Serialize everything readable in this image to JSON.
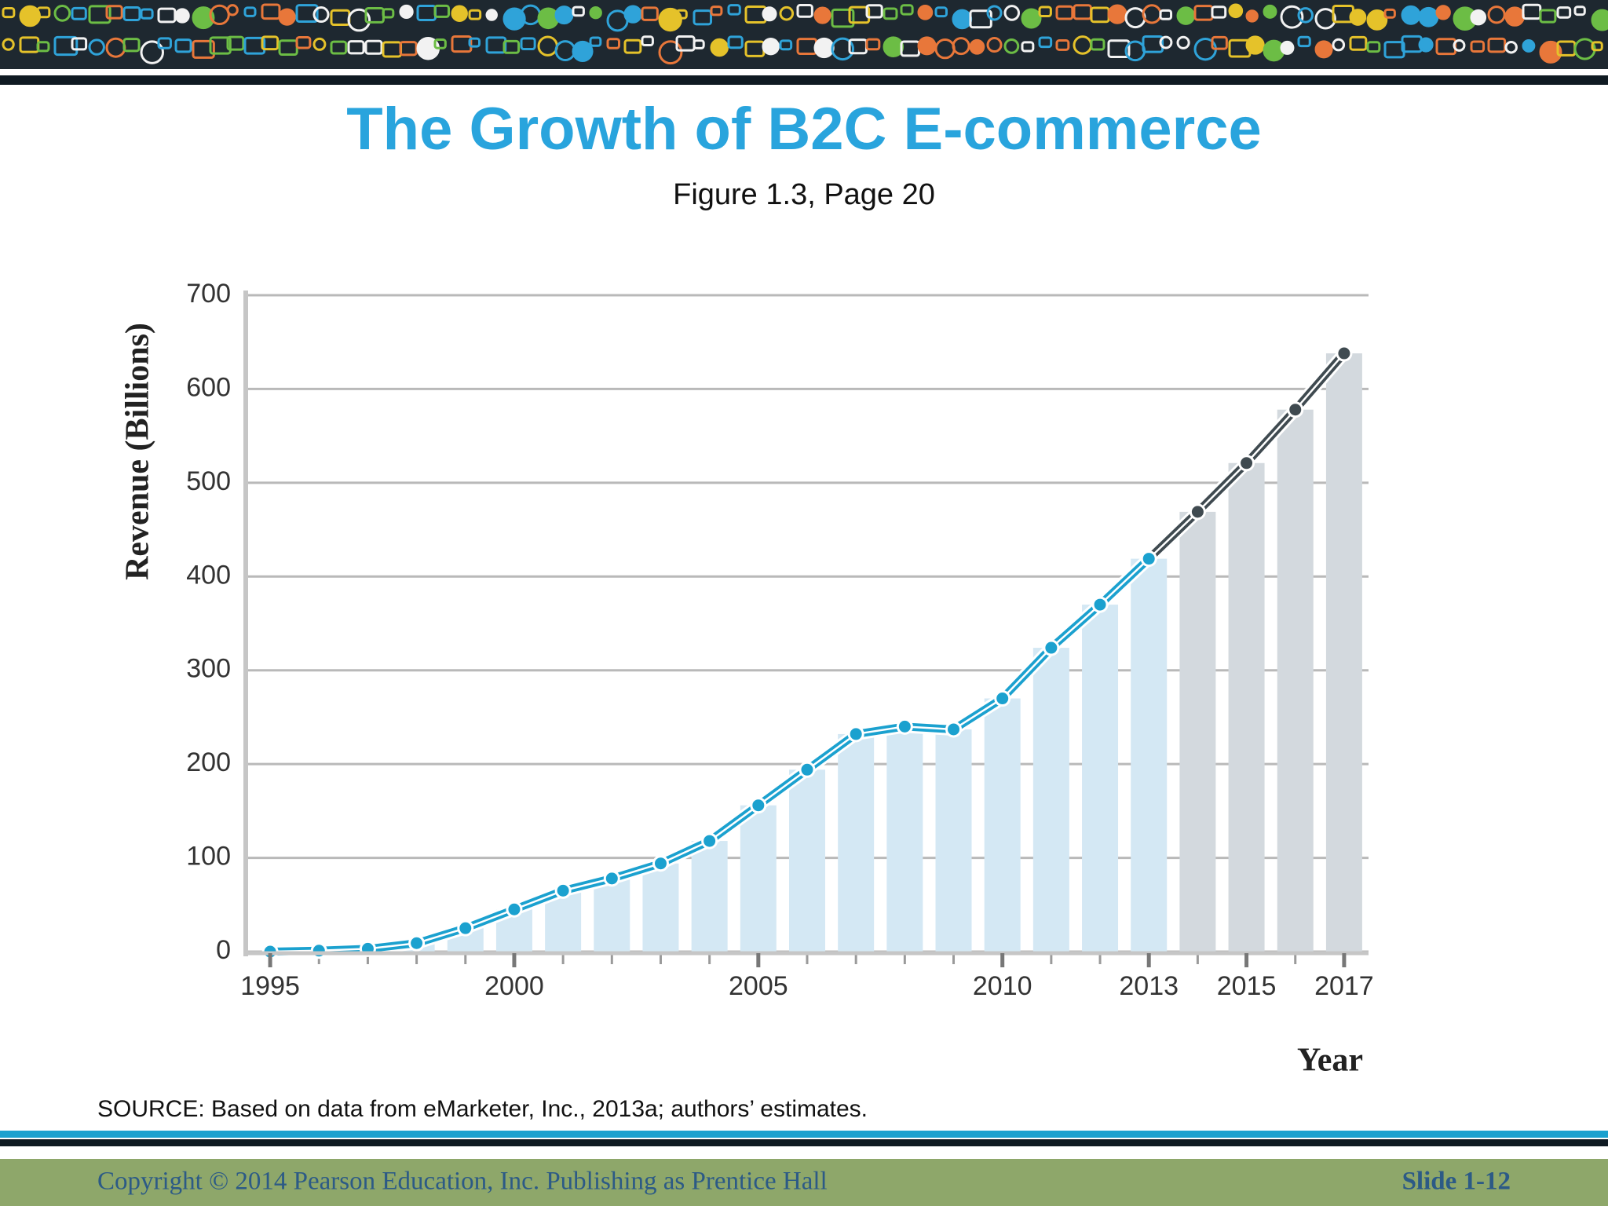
{
  "header": {
    "title": "The Growth of B2C E-commerce",
    "subtitle": "Figure 1.3, Page 20"
  },
  "chart_data": {
    "type": "combo",
    "x_label": "Year",
    "y_label": "Revenue (Billions)",
    "x": [
      1995,
      1996,
      1997,
      1998,
      1999,
      2000,
      2001,
      2002,
      2003,
      2004,
      2005,
      2006,
      2007,
      2008,
      2009,
      2010,
      2011,
      2012,
      2013,
      2014,
      2015,
      2016,
      2017
    ],
    "values": [
      0,
      1,
      3,
      9,
      25,
      45,
      65,
      78,
      94,
      118,
      156,
      194,
      232,
      240,
      237,
      270,
      324,
      370,
      419,
      469,
      521,
      578,
      638
    ],
    "bar_colors": [
      "#d4e8f4",
      "#d4e8f4",
      "#d4e8f4",
      "#d4e8f4",
      "#d4e8f4",
      "#d4e8f4",
      "#d4e8f4",
      "#d4e8f4",
      "#d4e8f4",
      "#d4e8f4",
      "#d4e8f4",
      "#d4e8f4",
      "#d4e8f4",
      "#d4e8f4",
      "#d4e8f4",
      "#d4e8f4",
      "#d4e8f4",
      "#d4e8f4",
      "#d4e8f4",
      "#d3d9de",
      "#d3d9de",
      "#d3d9de",
      "#d3d9de"
    ],
    "line_colors": [
      "#1ba1cf",
      "#1ba1cf",
      "#1ba1cf",
      "#1ba1cf",
      "#1ba1cf",
      "#1ba1cf",
      "#1ba1cf",
      "#1ba1cf",
      "#1ba1cf",
      "#1ba1cf",
      "#1ba1cf",
      "#1ba1cf",
      "#1ba1cf",
      "#1ba1cf",
      "#1ba1cf",
      "#1ba1cf",
      "#1ba1cf",
      "#1ba1cf",
      "#1ba1cf",
      "#3f4a50",
      "#3f4a50",
      "#3f4a50",
      "#3f4a50"
    ],
    "xlim": [
      1994.5,
      2017.5
    ],
    "xticks": [
      1995,
      2000,
      2005,
      2010,
      2013,
      2015,
      2017
    ],
    "ylim": [
      0,
      700
    ],
    "yticks": [
      0,
      100,
      200,
      300,
      400,
      500,
      600,
      700
    ],
    "grid": true
  },
  "source": "SOURCE: Based on data from eMarketer, Inc., 2013a; authors’ estimates.",
  "footer": {
    "copyright": "Copyright © 2014 Pearson Education, Inc. Publishing as Prentice Hall",
    "slide": "Slide 1-12"
  }
}
